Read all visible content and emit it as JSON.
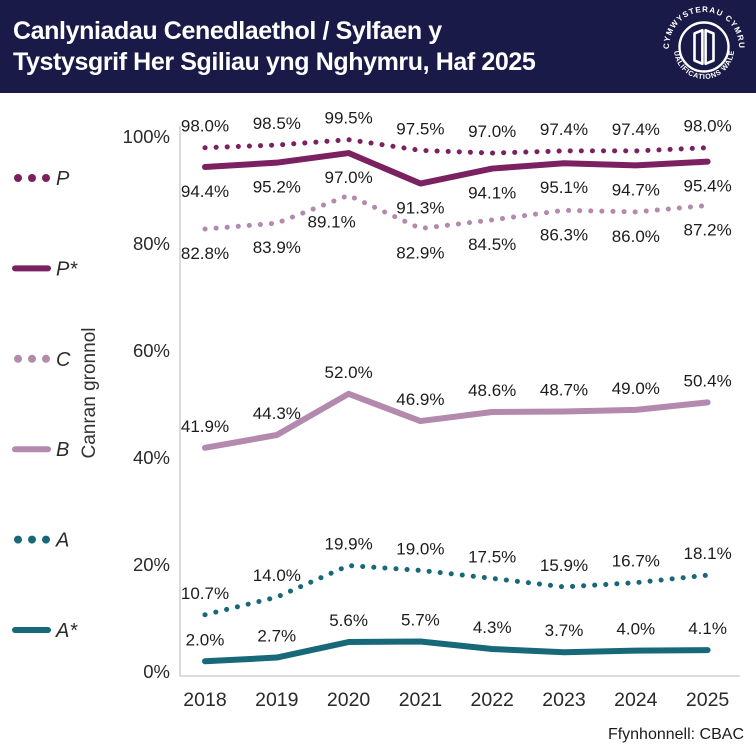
{
  "header": {
    "title_line1": "Canlyniadau Cenedlaethol / Sylfaen y",
    "title_line2": "Tystysgrif Her Sgiliau yng Nghymru, Haf 2025",
    "logo": {
      "top_text": "CYMWYSTERAU CYMRU",
      "bottom_text": "QUALIFICATIONS WALES",
      "icon": "open-book-icon"
    }
  },
  "colors": {
    "header_bg": "#1a1a48",
    "header_text": "#ffffff",
    "dark_purple": "#7b2161",
    "mauve": "#b489ae",
    "teal": "#17697a",
    "axis_gray": "#d2d2d2",
    "label_text": "#1c1c1c",
    "tick_text": "#2a2a2a"
  },
  "chart_data": {
    "type": "line",
    "title": "Canlyniadau Cenedlaethol / Sylfaen y Tystysgrif Her Sgiliau yng Nghymru, Haf 2025",
    "x": [
      2018,
      2019,
      2020,
      2021,
      2022,
      2023,
      2024,
      2025
    ],
    "series": [
      {
        "name": "P",
        "style": "dotted",
        "color": "#7b2161",
        "label_position": "above",
        "values": [
          98.0,
          98.5,
          99.5,
          97.5,
          97.0,
          97.4,
          97.4,
          98.0
        ]
      },
      {
        "name": "P*",
        "style": "solid",
        "color": "#7b2161",
        "label_position": "below",
        "values": [
          94.4,
          95.2,
          97.0,
          91.3,
          94.1,
          95.1,
          94.7,
          95.4
        ]
      },
      {
        "name": "C",
        "style": "dotted",
        "color": "#b489ae",
        "label_position": "below",
        "values": [
          82.8,
          83.9,
          89.1,
          82.9,
          84.5,
          86.3,
          86.0,
          87.2
        ]
      },
      {
        "name": "B",
        "style": "solid",
        "color": "#b489ae",
        "label_position": "above",
        "values": [
          41.9,
          44.3,
          52.0,
          46.9,
          48.6,
          48.7,
          49.0,
          50.4
        ]
      },
      {
        "name": "A",
        "style": "dotted",
        "color": "#17697a",
        "label_position": "above",
        "values": [
          10.7,
          14.0,
          19.9,
          19.0,
          17.5,
          15.9,
          16.7,
          18.1
        ]
      },
      {
        "name": "A*",
        "style": "solid",
        "color": "#17697a",
        "label_position": "above",
        "values": [
          2.0,
          2.7,
          5.6,
          5.7,
          4.3,
          3.7,
          4.0,
          4.1
        ]
      }
    ],
    "ylabel": "Canran gronnol",
    "yticks": [
      "0%",
      "20%",
      "40%",
      "60%",
      "80%",
      "100%"
    ],
    "ylim": [
      0,
      100
    ],
    "grid": false,
    "legend_position": "left",
    "value_suffix": "%"
  },
  "footer": {
    "source": "Ffynhonnell: CBAC"
  }
}
